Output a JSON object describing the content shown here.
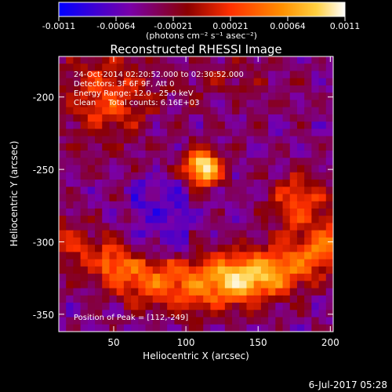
{
  "colorbar": {
    "tick_labels": [
      "-0.0011",
      "-0.00064",
      "-0.00021",
      "0.00021",
      "0.00064",
      "0.0011"
    ],
    "unit_label": "(photons cm⁻² s⁻¹ asec⁻²)",
    "range": [
      -0.0011,
      0.0011
    ],
    "colormap_stops": [
      "#0000ff",
      "#7a00a8",
      "#8b0000",
      "#ff3000",
      "#ff9000",
      "#ffd040",
      "#ffffff"
    ]
  },
  "chart_data": {
    "type": "heatmap",
    "title": "Reconstructed RHESSI Image",
    "xlabel": "Heliocentric X (arcsec)",
    "ylabel": "Heliocentric Y (arcsec)",
    "xlim": [
      12,
      202
    ],
    "ylim": [
      -362,
      -172
    ],
    "x_ticks": [
      50,
      100,
      150,
      200
    ],
    "y_ticks": [
      -200,
      -250,
      -300,
      -350
    ],
    "info_lines": [
      "24-Oct-2014 02:20:52.000 to 02:30:52.000",
      "Detectors: 3F 6F 9F, Att 0",
      "Energy Range: 12.0 - 25.0 keV",
      "Clean     Total counts: 6.16E+03"
    ],
    "peak_label": "Position of Peak = [112,-249]",
    "peak": [
      112,
      -249
    ],
    "grid": false
  },
  "footer": {
    "date": "6-Jul-2017 05:28"
  }
}
